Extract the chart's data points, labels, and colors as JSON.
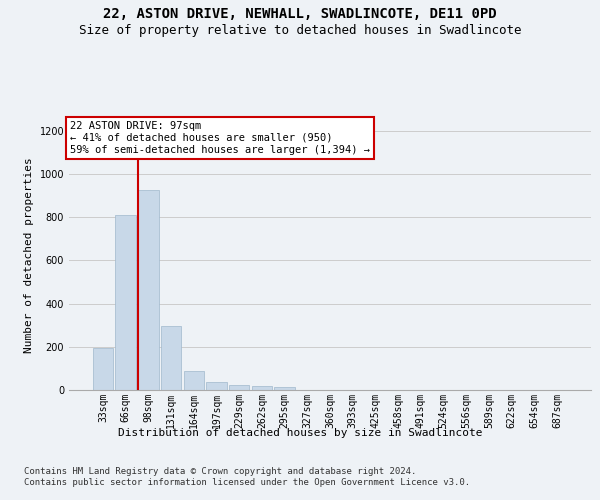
{
  "title": "22, ASTON DRIVE, NEWHALL, SWADLINCOTE, DE11 0PD",
  "subtitle": "Size of property relative to detached houses in Swadlincote",
  "xlabel": "Distribution of detached houses by size in Swadlincote",
  "ylabel": "Number of detached properties",
  "bar_labels": [
    "33sqm",
    "66sqm",
    "98sqm",
    "131sqm",
    "164sqm",
    "197sqm",
    "229sqm",
    "262sqm",
    "295sqm",
    "327sqm",
    "360sqm",
    "393sqm",
    "425sqm",
    "458sqm",
    "491sqm",
    "524sqm",
    "556sqm",
    "589sqm",
    "622sqm",
    "654sqm",
    "687sqm"
  ],
  "bar_values": [
    195,
    810,
    925,
    295,
    88,
    36,
    22,
    18,
    12,
    0,
    0,
    0,
    0,
    0,
    0,
    0,
    0,
    0,
    0,
    0,
    0
  ],
  "bar_color": "#c8d8e8",
  "bar_edge_color": "#a0b8cc",
  "grid_color": "#cccccc",
  "annotation_box_text": "22 ASTON DRIVE: 97sqm\n← 41% of detached houses are smaller (950)\n59% of semi-detached houses are larger (1,394) →",
  "annotation_box_color": "#cc0000",
  "ylim": [
    0,
    1250
  ],
  "yticks": [
    0,
    200,
    400,
    600,
    800,
    1000,
    1200
  ],
  "footnote": "Contains HM Land Registry data © Crown copyright and database right 2024.\nContains public sector information licensed under the Open Government Licence v3.0.",
  "background_color": "#eef2f6",
  "plot_bg_color": "#eef2f6",
  "title_fontsize": 10,
  "subtitle_fontsize": 9,
  "ylabel_fontsize": 8,
  "tick_fontsize": 7,
  "xlabel_fontsize": 8,
  "footnote_fontsize": 6.5,
  "annot_fontsize": 7.5
}
